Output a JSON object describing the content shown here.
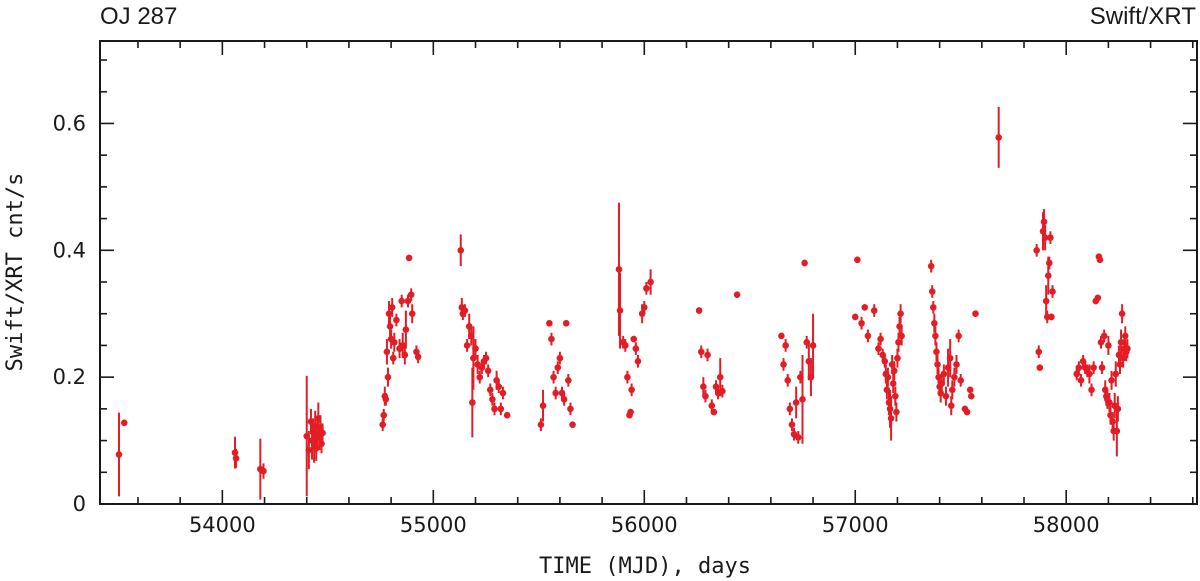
{
  "chart_data": {
    "type": "scatter",
    "title_left": "OJ 287",
    "title_right": "Swift/XRT",
    "xlabel": "TIME (MJD), days",
    "ylabel": "Swift/XRT cnt/s",
    "xlim": [
      53420,
      58620
    ],
    "ylim": [
      0,
      0.73
    ],
    "xticks": [
      54000,
      55000,
      56000,
      57000,
      58000
    ],
    "xtick_labels": [
      "54000",
      "55000",
      "56000",
      "57000",
      "58000"
    ],
    "yticks": [
      0,
      0.2,
      0.4,
      0.6
    ],
    "ytick_labels": [
      "0",
      "0.2",
      "0.4",
      "0.6"
    ],
    "grid": false,
    "color": "#e31d25",
    "series": [
      {
        "points": [
          [
            53510,
            0.078,
            0.066
          ],
          [
            53535,
            0.128,
            0.005
          ],
          [
            54060,
            0.081,
            0.025
          ],
          [
            54065,
            0.072,
            0.015
          ],
          [
            54180,
            0.055,
            0.048
          ],
          [
            54195,
            0.052,
            0.012
          ],
          [
            54400,
            0.107,
            0.095
          ],
          [
            54410,
            0.085,
            0.03
          ],
          [
            54420,
            0.13,
            0.02
          ],
          [
            54425,
            0.1,
            0.03
          ],
          [
            54430,
            0.115,
            0.02
          ],
          [
            54435,
            0.095,
            0.03
          ],
          [
            54440,
            0.122,
            0.025
          ],
          [
            54445,
            0.088,
            0.02
          ],
          [
            54450,
            0.11,
            0.02
          ],
          [
            54455,
            0.135,
            0.025
          ],
          [
            54460,
            0.105,
            0.02
          ],
          [
            54465,
            0.12,
            0.02
          ],
          [
            54470,
            0.095,
            0.015
          ],
          [
            54475,
            0.112,
            0.015
          ],
          [
            54760,
            0.125,
            0.01
          ],
          [
            54765,
            0.14,
            0.01
          ],
          [
            54770,
            0.17,
            0.015
          ],
          [
            54775,
            0.165,
            0.01
          ],
          [
            54780,
            0.24,
            0.02
          ],
          [
            54785,
            0.2,
            0.015
          ],
          [
            54790,
            0.3,
            0.02
          ],
          [
            54795,
            0.28,
            0.02
          ],
          [
            54800,
            0.26,
            0.015
          ],
          [
            54805,
            0.31,
            0.015
          ],
          [
            54810,
            0.23,
            0.01
          ],
          [
            54815,
            0.255,
            0.015
          ],
          [
            54825,
            0.29,
            0.01
          ],
          [
            54840,
            0.245,
            0.015
          ],
          [
            54850,
            0.32,
            0.01
          ],
          [
            54855,
            0.25,
            0.02
          ],
          [
            54865,
            0.235,
            0.015
          ],
          [
            54870,
            0.275,
            0.03
          ],
          [
            54880,
            0.32,
            0.01
          ],
          [
            54885,
            0.388,
            0.005
          ],
          [
            54895,
            0.33,
            0.01
          ],
          [
            54900,
            0.3,
            0.015
          ],
          [
            54920,
            0.24,
            0.01
          ],
          [
            54928,
            0.232,
            0.01
          ],
          [
            55130,
            0.4,
            0.025
          ],
          [
            55135,
            0.31,
            0.015
          ],
          [
            55140,
            0.3,
            0.01
          ],
          [
            55150,
            0.305,
            0.01
          ],
          [
            55160,
            0.25,
            0.01
          ],
          [
            55170,
            0.28,
            0.02
          ],
          [
            55180,
            0.265,
            0.015
          ],
          [
            55185,
            0.16,
            0.055
          ],
          [
            55190,
            0.23,
            0.05
          ],
          [
            55200,
            0.245,
            0.015
          ],
          [
            55210,
            0.22,
            0.015
          ],
          [
            55220,
            0.2,
            0.01
          ],
          [
            55230,
            0.215,
            0.01
          ],
          [
            55240,
            0.225,
            0.01
          ],
          [
            55250,
            0.23,
            0.01
          ],
          [
            55260,
            0.21,
            0.01
          ],
          [
            55270,
            0.18,
            0.01
          ],
          [
            55280,
            0.165,
            0.01
          ],
          [
            55290,
            0.15,
            0.01
          ],
          [
            55300,
            0.195,
            0.015
          ],
          [
            55310,
            0.185,
            0.01
          ],
          [
            55320,
            0.15,
            0.01
          ],
          [
            55330,
            0.175,
            0.01
          ],
          [
            55350,
            0.14,
            0.005
          ],
          [
            55510,
            0.125,
            0.01
          ],
          [
            55520,
            0.155,
            0.025
          ],
          [
            55550,
            0.285,
            0.005
          ],
          [
            55560,
            0.26,
            0.01
          ],
          [
            55570,
            0.2,
            0.01
          ],
          [
            55580,
            0.175,
            0.01
          ],
          [
            55590,
            0.215,
            0.01
          ],
          [
            55600,
            0.23,
            0.01
          ],
          [
            55610,
            0.175,
            0.01
          ],
          [
            55620,
            0.165,
            0.01
          ],
          [
            55630,
            0.285,
            0.005
          ],
          [
            55640,
            0.195,
            0.01
          ],
          [
            55650,
            0.15,
            0.01
          ],
          [
            55660,
            0.125,
            0.005
          ],
          [
            55880,
            0.37,
            0.105
          ],
          [
            55885,
            0.305,
            0.06
          ],
          [
            55900,
            0.255,
            0.01
          ],
          [
            55910,
            0.25,
            0.01
          ],
          [
            55920,
            0.2,
            0.01
          ],
          [
            55930,
            0.14,
            0.005
          ],
          [
            55935,
            0.145,
            0.005
          ],
          [
            55940,
            0.18,
            0.01
          ],
          [
            55950,
            0.26,
            0.005
          ],
          [
            55960,
            0.245,
            0.01
          ],
          [
            55970,
            0.225,
            0.01
          ],
          [
            55990,
            0.3,
            0.015
          ],
          [
            56000,
            0.31,
            0.01
          ],
          [
            56010,
            0.34,
            0.01
          ],
          [
            56030,
            0.35,
            0.02
          ],
          [
            56260,
            0.305,
            0.005
          ],
          [
            56270,
            0.24,
            0.01
          ],
          [
            56280,
            0.185,
            0.015
          ],
          [
            56290,
            0.17,
            0.01
          ],
          [
            56300,
            0.235,
            0.01
          ],
          [
            56320,
            0.155,
            0.01
          ],
          [
            56330,
            0.145,
            0.005
          ],
          [
            56340,
            0.185,
            0.01
          ],
          [
            56350,
            0.175,
            0.01
          ],
          [
            56360,
            0.2,
            0.03
          ],
          [
            56370,
            0.178,
            0.01
          ],
          [
            56440,
            0.33,
            0.005
          ],
          [
            56650,
            0.265,
            0.005
          ],
          [
            56660,
            0.22,
            0.01
          ],
          [
            56670,
            0.25,
            0.01
          ],
          [
            56680,
            0.195,
            0.01
          ],
          [
            56690,
            0.15,
            0.01
          ],
          [
            56700,
            0.125,
            0.01
          ],
          [
            56710,
            0.11,
            0.01
          ],
          [
            56720,
            0.16,
            0.025
          ],
          [
            56730,
            0.105,
            0.01
          ],
          [
            56740,
            0.2,
            0.01
          ],
          [
            56750,
            0.165,
            0.07
          ],
          [
            56760,
            0.38,
            0.005
          ],
          [
            56770,
            0.255,
            0.01
          ],
          [
            56780,
            0.225,
            0.03
          ],
          [
            56790,
            0.2,
            0.03
          ],
          [
            56800,
            0.25,
            0.05
          ],
          [
            57010,
            0.385,
            0.005
          ],
          [
            57000,
            0.295,
            0.005
          ],
          [
            57030,
            0.285,
            0.01
          ],
          [
            57045,
            0.31,
            0.005
          ],
          [
            57060,
            0.265,
            0.01
          ],
          [
            57090,
            0.305,
            0.01
          ],
          [
            57110,
            0.245,
            0.01
          ],
          [
            57120,
            0.26,
            0.01
          ],
          [
            57130,
            0.235,
            0.01
          ],
          [
            57140,
            0.225,
            0.01
          ],
          [
            57145,
            0.205,
            0.015
          ],
          [
            57150,
            0.18,
            0.015
          ],
          [
            57155,
            0.2,
            0.015
          ],
          [
            57160,
            0.16,
            0.02
          ],
          [
            57165,
            0.15,
            0.03
          ],
          [
            57170,
            0.135,
            0.035
          ],
          [
            57175,
            0.22,
            0.015
          ],
          [
            57180,
            0.19,
            0.015
          ],
          [
            57185,
            0.21,
            0.015
          ],
          [
            57190,
            0.17,
            0.015
          ],
          [
            57195,
            0.145,
            0.015
          ],
          [
            57200,
            0.23,
            0.015
          ],
          [
            57205,
            0.255,
            0.015
          ],
          [
            57210,
            0.28,
            0.015
          ],
          [
            57215,
            0.3,
            0.015
          ],
          [
            57220,
            0.265,
            0.015
          ],
          [
            57360,
            0.375,
            0.01
          ],
          [
            57365,
            0.335,
            0.01
          ],
          [
            57370,
            0.31,
            0.01
          ],
          [
            57375,
            0.285,
            0.015
          ],
          [
            57380,
            0.265,
            0.015
          ],
          [
            57385,
            0.24,
            0.015
          ],
          [
            57390,
            0.22,
            0.015
          ],
          [
            57395,
            0.2,
            0.015
          ],
          [
            57400,
            0.185,
            0.015
          ],
          [
            57405,
            0.175,
            0.015
          ],
          [
            57410,
            0.19,
            0.015
          ],
          [
            57420,
            0.205,
            0.015
          ],
          [
            57430,
            0.17,
            0.015
          ],
          [
            57440,
            0.215,
            0.03
          ],
          [
            57450,
            0.23,
            0.03
          ],
          [
            57455,
            0.155,
            0.015
          ],
          [
            57460,
            0.18,
            0.015
          ],
          [
            57470,
            0.2,
            0.015
          ],
          [
            57480,
            0.22,
            0.015
          ],
          [
            57490,
            0.265,
            0.01
          ],
          [
            57500,
            0.195,
            0.01
          ],
          [
            57520,
            0.15,
            0.005
          ],
          [
            57530,
            0.145,
            0.005
          ],
          [
            57545,
            0.18,
            0.005
          ],
          [
            57550,
            0.17,
            0.005
          ],
          [
            57570,
            0.3,
            0.005
          ],
          [
            57680,
            0.578,
            0.048
          ],
          [
            57860,
            0.4,
            0.01
          ],
          [
            57870,
            0.24,
            0.01
          ],
          [
            57875,
            0.215,
            0.005
          ],
          [
            57890,
            0.43,
            0.03
          ],
          [
            57895,
            0.445,
            0.02
          ],
          [
            57900,
            0.42,
            0.02
          ],
          [
            57905,
            0.32,
            0.025
          ],
          [
            57910,
            0.295,
            0.01
          ],
          [
            57915,
            0.36,
            0.03
          ],
          [
            57920,
            0.38,
            0.01
          ],
          [
            57925,
            0.42,
            0.01
          ],
          [
            57930,
            0.295,
            0.005
          ],
          [
            57935,
            0.335,
            0.01
          ],
          [
            58050,
            0.205,
            0.01
          ],
          [
            58060,
            0.215,
            0.01
          ],
          [
            58070,
            0.195,
            0.01
          ],
          [
            58080,
            0.225,
            0.01
          ],
          [
            58090,
            0.215,
            0.01
          ],
          [
            58100,
            0.21,
            0.01
          ],
          [
            58110,
            0.205,
            0.015
          ],
          [
            58120,
            0.18,
            0.01
          ],
          [
            58130,
            0.215,
            0.01
          ],
          [
            58140,
            0.32,
            0.005
          ],
          [
            58150,
            0.325,
            0.005
          ],
          [
            58155,
            0.39,
            0.005
          ],
          [
            58160,
            0.385,
            0.005
          ],
          [
            58165,
            0.255,
            0.01
          ],
          [
            58170,
            0.215,
            0.01
          ],
          [
            58180,
            0.265,
            0.01
          ],
          [
            58185,
            0.18,
            0.015
          ],
          [
            58190,
            0.17,
            0.015
          ],
          [
            58195,
            0.165,
            0.015
          ],
          [
            58200,
            0.25,
            0.015
          ],
          [
            58205,
            0.16,
            0.015
          ],
          [
            58210,
            0.14,
            0.015
          ],
          [
            58215,
            0.195,
            0.015
          ],
          [
            58220,
            0.13,
            0.015
          ],
          [
            58225,
            0.115,
            0.015
          ],
          [
            58230,
            0.155,
            0.02
          ],
          [
            58235,
            0.205,
            0.02
          ],
          [
            58240,
            0.115,
            0.04
          ],
          [
            58245,
            0.15,
            0.02
          ],
          [
            58250,
            0.235,
            0.015
          ],
          [
            58255,
            0.22,
            0.015
          ],
          [
            58260,
            0.255,
            0.02
          ],
          [
            58265,
            0.3,
            0.015
          ],
          [
            58270,
            0.23,
            0.015
          ],
          [
            58275,
            0.245,
            0.015
          ],
          [
            58280,
            0.265,
            0.015
          ],
          [
            58285,
            0.24,
            0.015
          ],
          [
            58290,
            0.245,
            0.015
          ]
        ]
      }
    ]
  }
}
